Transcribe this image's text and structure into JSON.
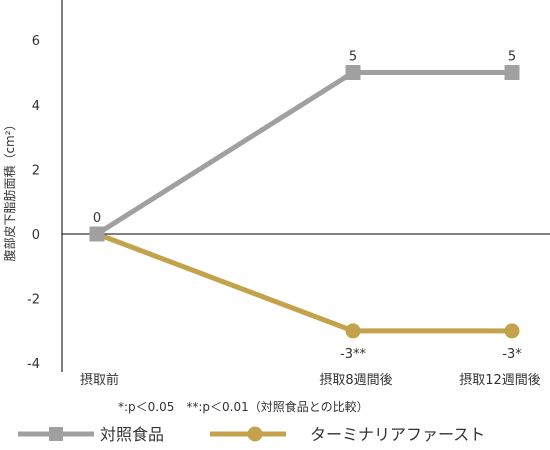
{
  "chart_data": {
    "type": "line",
    "ylabel": "腹部皮下脂肪面積（cm²）",
    "ylim": [
      -4,
      7
    ],
    "yticks": [
      -4,
      -2,
      0,
      2,
      4,
      6
    ],
    "categories": [
      "摂取前",
      "摂取8週間後",
      "摂取12週間後"
    ],
    "series": [
      {
        "name": "対照食品",
        "values": [
          0,
          5,
          5
        ],
        "labels": [
          "0",
          "5",
          "5"
        ],
        "color": "#a0a0a0",
        "marker": "square"
      },
      {
        "name": "ターミナリアファースト",
        "values": [
          0,
          -3,
          -3
        ],
        "labels": [
          "",
          "-3**",
          "-3*"
        ],
        "color": "#c4a24c",
        "marker": "circle"
      }
    ],
    "footnote": "*:p＜0.05　**:p＜0.01（対照食品との比較）",
    "grid": false,
    "legend_position": "bottom"
  }
}
